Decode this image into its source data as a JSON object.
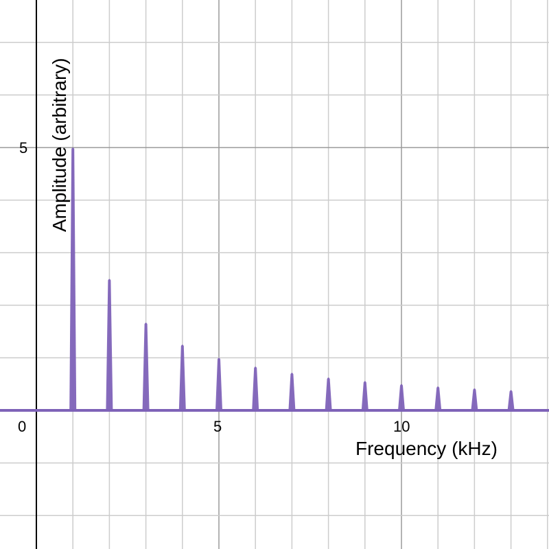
{
  "chart_data": {
    "type": "bar",
    "title": "",
    "xlabel": "Frequency (kHz)",
    "ylabel": "Amplitude (arbitrary)",
    "x": [
      1,
      2,
      3,
      4,
      5,
      6,
      7,
      8,
      9,
      10,
      11,
      12,
      13
    ],
    "values": [
      5.0,
      2.5,
      1.667,
      1.25,
      1.0,
      0.833,
      0.714,
      0.625,
      0.556,
      0.5,
      0.455,
      0.417,
      0.385
    ],
    "xlim": [
      -1,
      14.05
    ],
    "ylim": [
      -2.6,
      7.8
    ],
    "x_ticks": [
      "0",
      "5",
      "10"
    ],
    "y_ticks": [
      "5"
    ],
    "grid": true,
    "series_color": "#7e62b8"
  },
  "axes": {
    "origin_label": "0",
    "x_tick_5": "5",
    "x_tick_10": "10",
    "y_tick_5": "5"
  }
}
